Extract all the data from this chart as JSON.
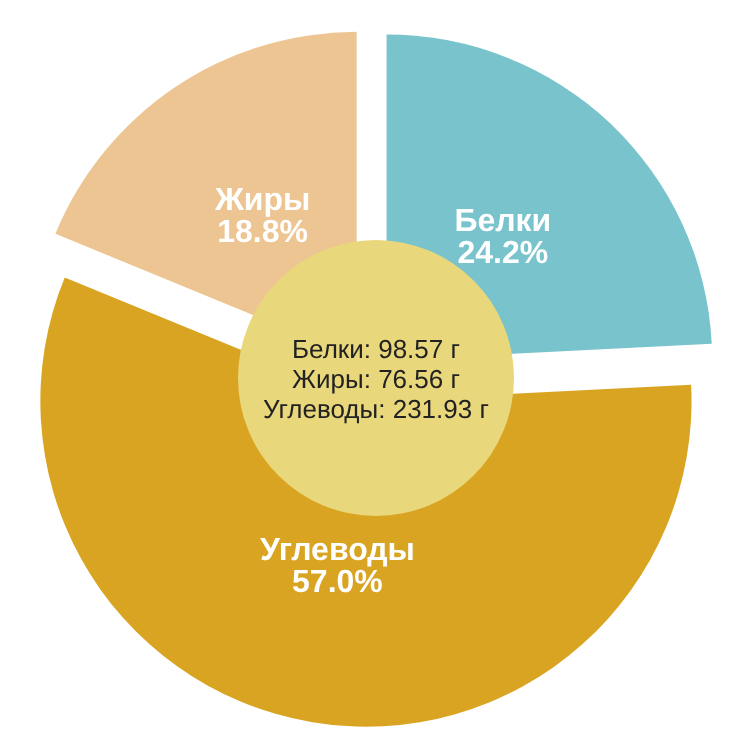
{
  "chart_data": {
    "type": "pie",
    "categories": [
      "Белки",
      "Углеводы",
      "Жиры"
    ],
    "values": [
      24.2,
      57.0,
      18.8
    ],
    "colors": [
      "#79c3cc",
      "#d9a421",
      "#edc592"
    ],
    "value_labels": [
      "24.2%",
      "57.0%",
      "18.8%"
    ],
    "annotations": [
      "Белки: 98.57 г",
      "Жиры: 76.56 г",
      "Углеводы: 231.93 г"
    ]
  }
}
